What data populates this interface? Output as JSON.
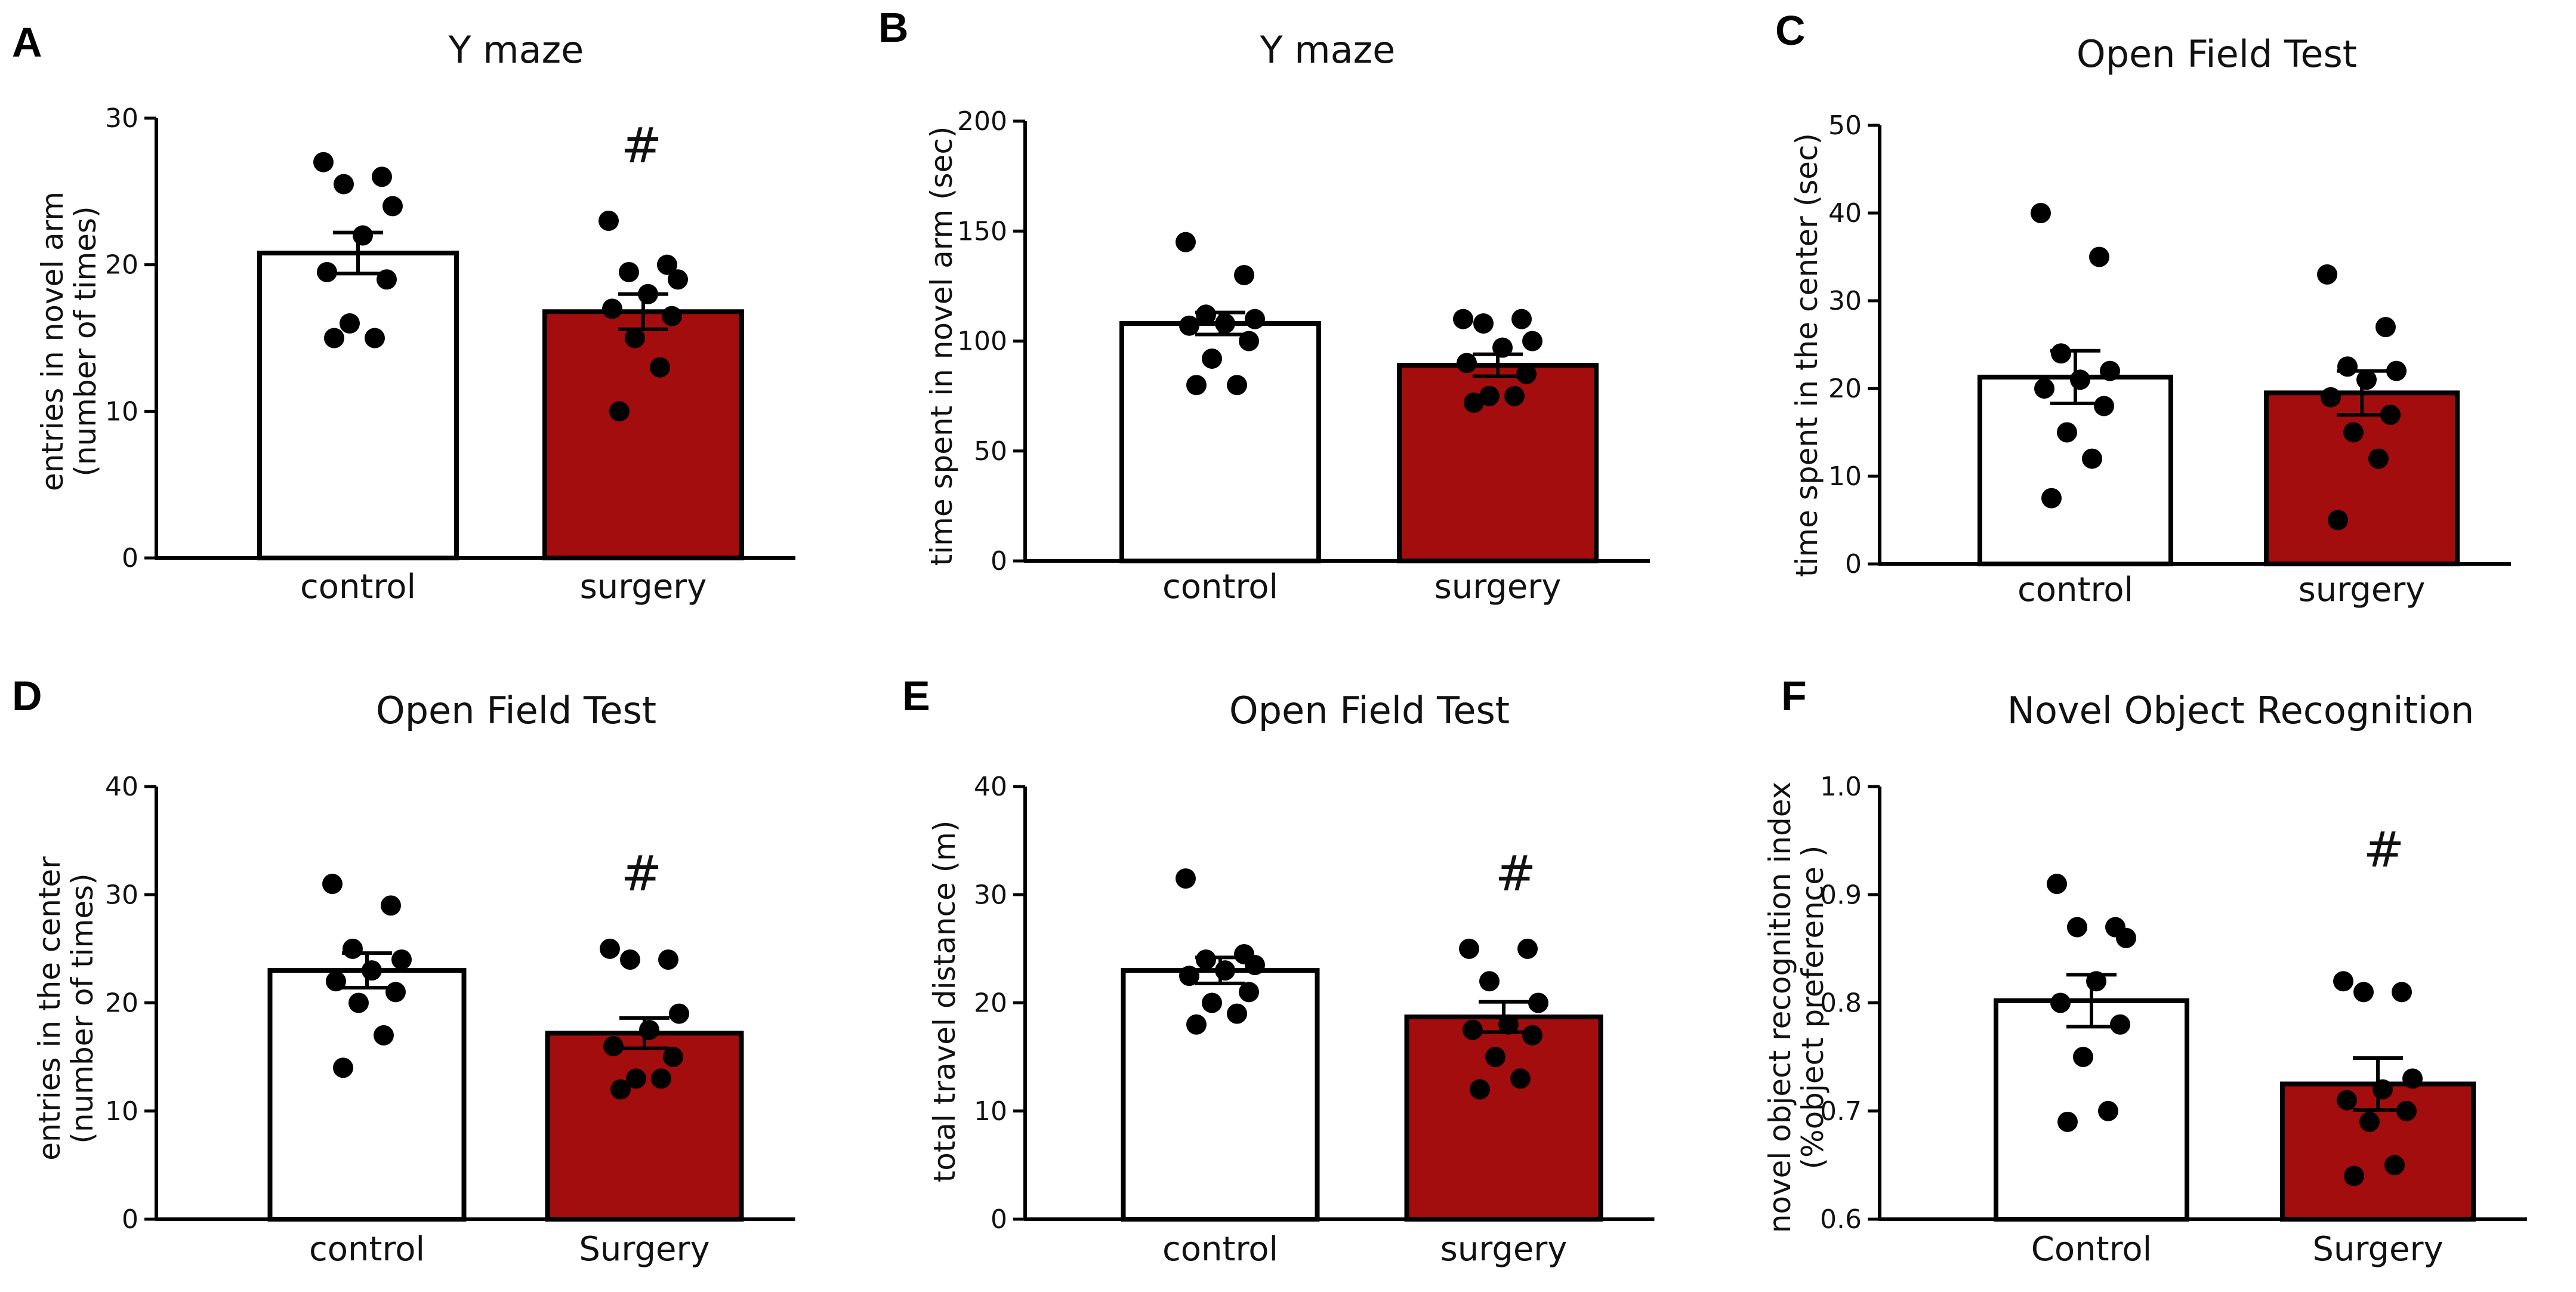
{
  "colors": {
    "control_fill": "#ffffff",
    "surgery_fill": "#a30d0d",
    "stroke": "#000000",
    "dot": "#000000"
  },
  "chart_data": [
    {
      "panel": "A",
      "type": "bar",
      "title": "Y maze",
      "ylabel": [
        "entries in novel arm",
        "(number of times)"
      ],
      "ylim": [
        0,
        30
      ],
      "yticks": [
        0,
        10,
        20,
        30
      ],
      "tick_labels": [
        "0",
        "10",
        "20",
        "30"
      ],
      "categories": [
        "control",
        "surgery"
      ],
      "means": [
        20.8,
        16.8
      ],
      "sem": [
        1.4,
        1.2
      ],
      "points": [
        [
          27,
          26,
          25.5,
          24,
          22,
          19.5,
          19,
          16,
          15,
          15
        ],
        [
          23,
          20,
          19.5,
          19,
          18,
          17,
          16.5,
          15,
          13,
          10
        ]
      ],
      "significance": [
        "",
        "#"
      ]
    },
    {
      "panel": "B",
      "type": "bar",
      "title": "Y maze",
      "ylabel": [
        "time spent in novel arm (sec)"
      ],
      "ylim": [
        0,
        200
      ],
      "yticks": [
        0,
        50,
        100,
        150,
        200
      ],
      "tick_labels": [
        "0",
        "50",
        "100",
        "150",
        "200"
      ],
      "categories": [
        "control",
        "surgery"
      ],
      "means": [
        108,
        89
      ],
      "sem": [
        5,
        5
      ],
      "points": [
        [
          145,
          130,
          112,
          110,
          108,
          107,
          100,
          92,
          80,
          80
        ],
        [
          110,
          110,
          108,
          100,
          97,
          90,
          85,
          75,
          75,
          72
        ]
      ],
      "significance": [
        "",
        ""
      ]
    },
    {
      "panel": "C",
      "type": "bar",
      "title": "Open Field Test",
      "ylabel": [
        "time spent in the center (sec)"
      ],
      "ylim": [
        0,
        50
      ],
      "yticks": [
        0,
        10,
        20,
        30,
        40,
        50
      ],
      "tick_labels": [
        "0",
        "10",
        "20",
        "30",
        "40",
        "50"
      ],
      "categories": [
        "control",
        "surgery"
      ],
      "means": [
        21.3,
        19.5
      ],
      "sem": [
        3,
        2.5
      ],
      "points": [
        [
          40,
          35,
          24,
          22,
          21,
          20,
          18,
          15,
          12,
          7.5
        ],
        [
          33,
          27,
          22.5,
          22,
          21,
          19,
          17,
          15,
          12,
          5
        ]
      ],
      "significance": [
        "",
        ""
      ]
    },
    {
      "panel": "D",
      "type": "bar",
      "title": "Open Field Test",
      "ylabel": [
        "entries in the center",
        "(number of times)"
      ],
      "ylim": [
        0,
        40
      ],
      "yticks": [
        0,
        10,
        20,
        30,
        40
      ],
      "tick_labels": [
        "0",
        "10",
        "20",
        "30",
        "40"
      ],
      "categories": [
        "control",
        "Surgery"
      ],
      "means": [
        23,
        17.2
      ],
      "sem": [
        1.6,
        1.4
      ],
      "points": [
        [
          31,
          29,
          25,
          24,
          23,
          22,
          21,
          20,
          17,
          14
        ],
        [
          25,
          24,
          24,
          19,
          17.5,
          16,
          15,
          13,
          13,
          12
        ]
      ],
      "significance": [
        "",
        "#"
      ]
    },
    {
      "panel": "E",
      "type": "bar",
      "title": "Open Field Test",
      "ylabel": [
        "total travel distance (m)"
      ],
      "ylim": [
        0,
        40
      ],
      "yticks": [
        0,
        10,
        20,
        30,
        40
      ],
      "tick_labels": [
        "0",
        "10",
        "20",
        "30",
        "40"
      ],
      "categories": [
        "control",
        "surgery"
      ],
      "means": [
        23,
        18.7
      ],
      "sem": [
        1.2,
        1.4
      ],
      "points": [
        [
          31.5,
          24.5,
          24,
          23.5,
          23,
          22.5,
          21,
          20,
          19,
          18
        ],
        [
          25,
          25,
          22,
          20,
          18,
          17.5,
          17,
          15,
          13,
          12
        ]
      ],
      "significance": [
        "",
        "#"
      ]
    },
    {
      "panel": "F",
      "type": "bar",
      "title": "Novel Object Recognition",
      "ylabel": [
        "novel object recognition index",
        "(%object preference )"
      ],
      "ylim": [
        0.6,
        1.0
      ],
      "yticks": [
        0.6,
        0.7,
        0.8,
        0.9,
        1.0
      ],
      "tick_labels": [
        "0.6",
        "0.7",
        "0.8",
        "0.9",
        "1.0"
      ],
      "categories": [
        "Control",
        "Surgery"
      ],
      "means": [
        0.802,
        0.725
      ],
      "sem": [
        0.024,
        0.024
      ],
      "points": [
        [
          0.91,
          0.87,
          0.87,
          0.86,
          0.82,
          0.8,
          0.78,
          0.75,
          0.7,
          0.69
        ],
        [
          0.82,
          0.81,
          0.81,
          0.73,
          0.72,
          0.71,
          0.7,
          0.69,
          0.65,
          0.64
        ]
      ],
      "significance": [
        "",
        "#"
      ]
    }
  ]
}
